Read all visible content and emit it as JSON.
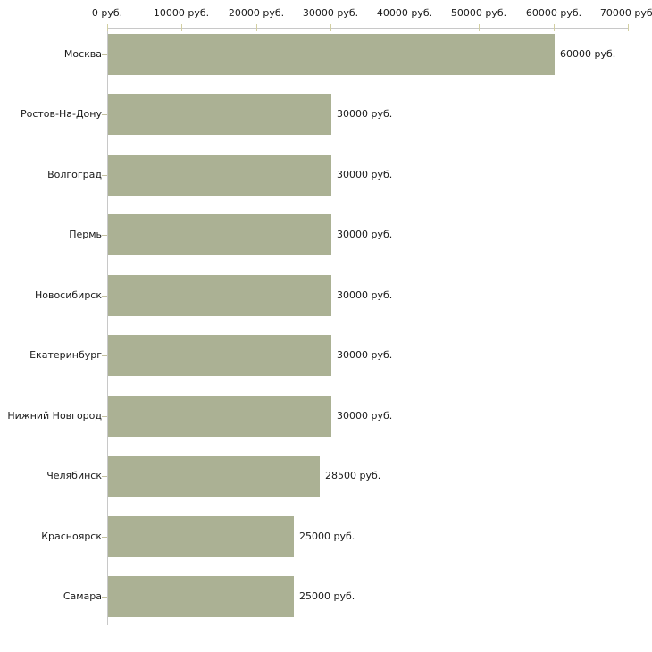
{
  "chart_data": {
    "type": "bar",
    "orientation": "horizontal",
    "title": "",
    "xlabel": "",
    "ylabel": "",
    "categories": [
      "Москва",
      "Ростов-На-Дону",
      "Волгоград",
      "Пермь",
      "Новосибирск",
      "Екатеринбург",
      "Нижний Новгород",
      "Челябинск",
      "Красноярск",
      "Самара"
    ],
    "values": [
      60000,
      30000,
      30000,
      30000,
      30000,
      30000,
      30000,
      28500,
      25000,
      25000
    ],
    "value_labels": [
      "60000 руб.",
      "30000 руб.",
      "30000 руб.",
      "30000 руб.",
      "30000 руб.",
      "30000 руб.",
      "30000 руб.",
      "28500 руб.",
      "25000 руб.",
      "25000 руб."
    ],
    "xlim": [
      0,
      70000
    ],
    "x_ticks": [
      0,
      10000,
      20000,
      30000,
      40000,
      50000,
      60000,
      70000
    ],
    "x_tick_labels": [
      "0 руб.",
      "10000 руб.",
      "20000 руб.",
      "30000 руб.",
      "40000 руб.",
      "50000 руб.",
      "60000 руб.",
      "70000 руб."
    ],
    "grid": false,
    "legend": null,
    "colors": {
      "bar_fill": "#abb194",
      "axis_line": "#c8c8c8",
      "tick_mark": "#d2cfa2",
      "category_tick": "#c4c1a0",
      "text": "#1a1a1a",
      "background": "#ffffff"
    }
  }
}
